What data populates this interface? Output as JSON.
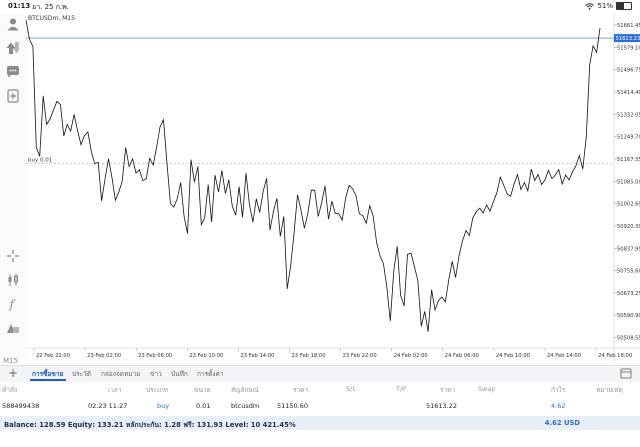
{
  "status": {
    "time": "01:13",
    "date": "อา. 25 ก.พ.",
    "battery_pct": "51%",
    "battery_level": 0.51
  },
  "chart": {
    "symbol_label": "BTCUSDm, M15",
    "timeframe": "M15",
    "order_line_label": "buy 0.01",
    "current_price_label": "51613.23",
    "price_ticks": [
      "51661.45",
      "51579.10",
      "51496.75",
      "51414.40",
      "51332.05",
      "51249.70",
      "51167.35",
      "51085.00",
      "51002.65",
      "50920.30",
      "50837.95",
      "50755.60",
      "50673.25",
      "50590.90",
      "50508.55"
    ],
    "time_ticks": [
      "22 Feb 22:00",
      "23 Feb 02:00",
      "23 Feb 06:00",
      "23 Feb 10:00",
      "23 Feb 14:00",
      "23 Feb 18:00",
      "23 Feb 22:00",
      "24 Feb 02:00",
      "24 Feb 06:00",
      "24 Feb 10:00",
      "24 Feb 14:00",
      "24 Feb 18:00"
    ],
    "price_range": [
      50470,
      51680
    ],
    "order_price": 51150.6,
    "current_price": 51613.23,
    "prices": [
      51679,
      51610,
      51582,
      51210,
      51177,
      51400,
      51295,
      51315,
      51348,
      51380,
      51368,
      51252,
      51295,
      51270,
      51332,
      51272,
      51220,
      51253,
      51267,
      51195,
      51150,
      51155,
      51013,
      51095,
      51168,
      51100,
      51015,
      51045,
      51085,
      51210,
      51140,
      51168,
      51115,
      51127,
      51087,
      51095,
      51170,
      51145,
      51210,
      51285,
      51312,
      51155,
      51003,
      50990,
      51020,
      51080,
      50955,
      50892,
      51165,
      51082,
      51140,
      50925,
      50950,
      51073,
      50935,
      51108,
      51045,
      51125,
      51040,
      51090,
      50995,
      50960,
      51065,
      50952,
      51115,
      51000,
      50935,
      51020,
      50970,
      51048,
      51096,
      50905,
      50975,
      51022,
      50882,
      50955,
      50688,
      50775,
      50895,
      51035,
      50978,
      50912,
      50965,
      51052,
      51052,
      50955,
      51005,
      51068,
      50945,
      51012,
      50966,
      50965,
      50942,
      51025,
      51070,
      51058,
      51032,
      50965,
      50958,
      50930,
      50995,
      50958,
      50860,
      50810,
      50780,
      50692,
      50570,
      50755,
      50845,
      50665,
      50625,
      50815,
      50820,
      50770,
      50720,
      50550,
      50605,
      50530,
      50685,
      50610,
      50645,
      50658,
      50640,
      50722,
      50790,
      50730,
      50812,
      50865,
      50903,
      50885,
      50950,
      50972,
      50986,
      50968,
      50998,
      50975,
      51010,
      51043,
      51100,
      51070,
      51038,
      51030,
      51075,
      51110,
      51055,
      51080,
      51050,
      51130,
      51088,
      51110,
      51073,
      51090,
      51125,
      51095,
      51108,
      51128,
      51075,
      51108,
      51090,
      51120,
      51142,
      51180,
      51130,
      51250,
      51515,
      51585,
      51560,
      51650
    ]
  },
  "tabs": [
    "การซื้อขาย",
    "ประวัติ",
    "กล่องจดหมาย",
    "ข่าว",
    "บันทึก",
    "การตั้งค่า"
  ],
  "table": {
    "headers": [
      "คำสั่ง",
      "เวลา",
      "ประเภท",
      "ขนาด",
      "สัญลักษณ์",
      "ราคา",
      "S/L",
      "T/P",
      "ราคา",
      "Swap",
      "กำไร",
      "หมายเหตุ"
    ],
    "rows": [
      {
        "ticket": "588499438",
        "time": "02.23 11:27",
        "type": "buy",
        "volume": "0.01",
        "symbol": "btcusdm",
        "price_open": "51150.60",
        "sl": "",
        "tp": "",
        "price_current": "51613.22",
        "swap": "",
        "profit": "4.62",
        "comment": ""
      }
    ]
  },
  "balance": {
    "text": "Balance: 128.59 Equity: 133.21 หลักประกัน: 1.28 ฟรี: 131.93 Level: 10 421.45%",
    "profit": "4.62",
    "currency": "USD"
  },
  "colors": {
    "accent": "#1e5cc8",
    "price_line": "#2b6fd6",
    "series": "#111111"
  }
}
